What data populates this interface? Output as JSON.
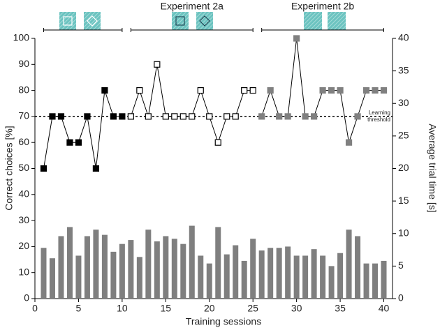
{
  "chart_data": {
    "type": "line+bar",
    "x_label": "Training sessions",
    "y_label": "Correct choices [%]",
    "y2_label": "Average trial time [s]",
    "x": [
      1,
      2,
      3,
      4,
      5,
      6,
      7,
      8,
      9,
      10,
      11,
      12,
      13,
      14,
      15,
      16,
      17,
      18,
      19,
      20,
      21,
      22,
      23,
      24,
      25,
      26,
      27,
      28,
      29,
      30,
      31,
      32,
      33,
      34,
      35,
      36,
      37,
      38,
      39,
      40
    ],
    "series": [
      {
        "type": "line",
        "marker_fill": "#000000",
        "marker_stroke": "#000000",
        "values": [
          50,
          70,
          70,
          60,
          60,
          70,
          50,
          80,
          70,
          70,
          null,
          null,
          null,
          null,
          null,
          null,
          null,
          null,
          null,
          null,
          null,
          null,
          null,
          null,
          null,
          null,
          null,
          null,
          null,
          null,
          null,
          null,
          null,
          null,
          null,
          null,
          null,
          null,
          null,
          null
        ]
      },
      {
        "type": "line",
        "marker_fill": "#ffffff",
        "marker_stroke": "#000000",
        "values": [
          null,
          null,
          null,
          null,
          null,
          null,
          null,
          null,
          null,
          null,
          70,
          80,
          70,
          90,
          70,
          70,
          70,
          70,
          80,
          70,
          60,
          70,
          70,
          80,
          80,
          null,
          null,
          null,
          null,
          null,
          null,
          null,
          null,
          null,
          null,
          null,
          null,
          null,
          null,
          null
        ]
      },
      {
        "type": "line",
        "marker_fill": "#808080",
        "marker_stroke": "#808080",
        "values": [
          null,
          null,
          null,
          null,
          null,
          null,
          null,
          null,
          null,
          null,
          null,
          null,
          null,
          null,
          null,
          null,
          null,
          null,
          null,
          null,
          null,
          null,
          null,
          null,
          null,
          70,
          80,
          70,
          70,
          100,
          70,
          70,
          80,
          80,
          80,
          60,
          70,
          80,
          80,
          80
        ]
      },
      {
        "type": "bar",
        "axis": "y2",
        "color": "#7f7f7f",
        "values": [
          7.8,
          6.2,
          9.6,
          11,
          6.6,
          9.6,
          10.6,
          9.8,
          7.2,
          8.4,
          9,
          6.4,
          10.6,
          8.8,
          9.6,
          9.2,
          8.4,
          11.2,
          6.6,
          5.4,
          11,
          6.8,
          8.2,
          5.8,
          9.2,
          7.4,
          7.8,
          7.8,
          8,
          6.6,
          6.6,
          7.6,
          6.6,
          5,
          7,
          10.6,
          9.6,
          5.4,
          5.4,
          5.8
        ]
      }
    ],
    "threshold": {
      "value": 70,
      "label_lines": [
        "Learning",
        "threshold"
      ]
    },
    "brackets": [
      {
        "xrange": [
          1,
          10
        ]
      },
      {
        "label": "Experiment 2a",
        "xrange": [
          11,
          25
        ]
      },
      {
        "label": "Experiment 2b",
        "xrange": [
          26,
          40
        ]
      }
    ],
    "xlim": [
      0,
      41
    ],
    "xticks": [
      0,
      5,
      10,
      15,
      20,
      25,
      30,
      35,
      40
    ],
    "ylim": [
      0,
      100
    ],
    "yticks": [
      0,
      10,
      20,
      30,
      40,
      50,
      60,
      70,
      80,
      90,
      100
    ],
    "y2lim": [
      0,
      40
    ],
    "y2ticks": [
      0,
      5,
      10,
      15,
      20,
      25,
      30,
      35,
      40
    ]
  }
}
